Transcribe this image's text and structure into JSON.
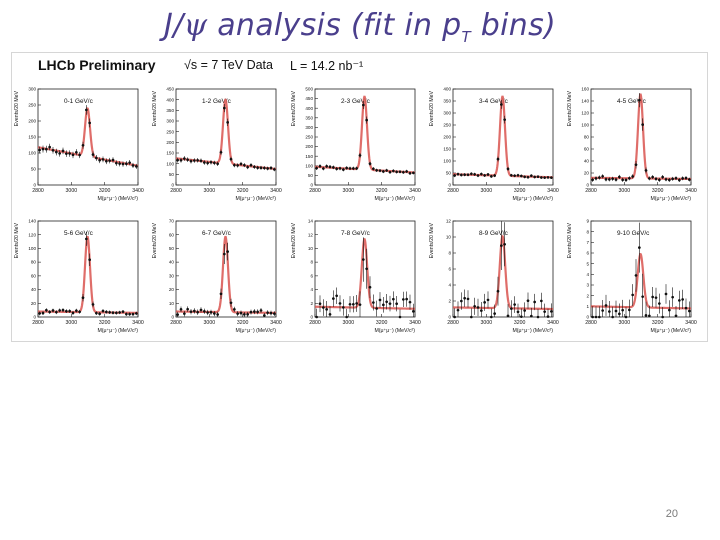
{
  "slide": {
    "title_prefix": "J/",
    "title_psi": "ψ",
    "title_mid": " analysis (fit in p",
    "title_sub": "T",
    "title_suffix": " bins)",
    "page_number": "20"
  },
  "figure_header": {
    "experiment": "LHCb Preliminary",
    "energy": "√s = 7 TeV Data",
    "luminosity": "L = 14.2 nb⁻¹"
  },
  "colors": {
    "fit_line": "#d9534f",
    "data_points": "#111111",
    "frame": "#222222"
  },
  "chart_data": [
    {
      "type": "scatter",
      "bin_label": "0-1 GeV/c",
      "xlabel": "M(μ⁺μ⁻) (MeV/c²)",
      "ylabel": "Events/20 MeV",
      "xlim": [
        2800,
        3400
      ],
      "ylim": [
        0,
        300
      ],
      "xticks": [
        "2800",
        "3000",
        "3200",
        "3400"
      ],
      "yticks": [
        "0",
        "50",
        "100",
        "150",
        "200",
        "250",
        "300"
      ],
      "peak": 3097,
      "sigma": 15,
      "bkg_left": 118,
      "bkg_right": 60,
      "signal": 150,
      "noise": 0.12
    },
    {
      "type": "scatter",
      "bin_label": "1-2 GeV/c",
      "xlabel": "M(μ⁺μ⁻) (MeV/c²)",
      "ylabel": "Events/20 MeV",
      "xlim": [
        2800,
        3400
      ],
      "ylim": [
        0,
        450
      ],
      "xticks": [
        "2800",
        "3000",
        "3200",
        "3400"
      ],
      "yticks": [
        "0",
        "50",
        "100",
        "150",
        "200",
        "250",
        "300",
        "350",
        "400",
        "450"
      ],
      "peak": 3097,
      "sigma": 15,
      "bkg_left": 125,
      "bkg_right": 75,
      "signal": 300,
      "noise": 0.1
    },
    {
      "type": "scatter",
      "bin_label": "2-3 GeV/c",
      "xlabel": "M(μ⁺μ⁻) (MeV/c²)",
      "ylabel": "Events/20 MeV",
      "xlim": [
        2800,
        3400
      ],
      "ylim": [
        0,
        500
      ],
      "xticks": [
        "2800",
        "3000",
        "3200",
        "3400"
      ],
      "yticks": [
        "0",
        "50",
        "100",
        "150",
        "200",
        "250",
        "300",
        "350",
        "400",
        "450",
        "500"
      ],
      "peak": 3097,
      "sigma": 15,
      "bkg_left": 95,
      "bkg_right": 65,
      "signal": 380,
      "noise": 0.12
    },
    {
      "type": "scatter",
      "bin_label": "3-4 GeV/c",
      "xlabel": "M(μ⁺μ⁻) (MeV/c²)",
      "ylabel": "Events/20 MeV",
      "xlim": [
        2800,
        3400
      ],
      "ylim": [
        0,
        400
      ],
      "xticks": [
        "2800",
        "3000",
        "3200",
        "3400"
      ],
      "yticks": [
        "0",
        "50",
        "100",
        "150",
        "200",
        "250",
        "300",
        "350",
        "400"
      ],
      "peak": 3097,
      "sigma": 15,
      "bkg_left": 45,
      "bkg_right": 32,
      "signal": 330,
      "noise": 0.18
    },
    {
      "type": "scatter",
      "bin_label": "4-5 GeV/c",
      "xlabel": "M(μ⁺μ⁻) (MeV/c²)",
      "ylabel": "Events/20 MeV",
      "xlim": [
        2800,
        3400
      ],
      "ylim": [
        0,
        160
      ],
      "xticks": [
        "2800",
        "3000",
        "3200",
        "3400"
      ],
      "yticks": [
        "0",
        "20",
        "40",
        "60",
        "80",
        "100",
        "120",
        "140",
        "160"
      ],
      "peak": 3097,
      "sigma": 15,
      "bkg_left": 12,
      "bkg_right": 10,
      "signal": 140,
      "noise": 0.35
    },
    {
      "type": "scatter",
      "bin_label": "5-6 GeV/c",
      "xlabel": "M(μ⁺μ⁻) (MeV/c²)",
      "ylabel": "Events/20 MeV",
      "xlim": [
        2800,
        3400
      ],
      "ylim": [
        0,
        140
      ],
      "xticks": [
        "2800",
        "3000",
        "3200",
        "3400"
      ],
      "yticks": [
        "0",
        "20",
        "40",
        "60",
        "80",
        "100",
        "120",
        "140"
      ],
      "peak": 3097,
      "sigma": 15,
      "bkg_left": 8,
      "bkg_right": 6,
      "signal": 110,
      "noise": 0.4
    },
    {
      "type": "scatter",
      "bin_label": "6-7 GeV/c",
      "xlabel": "M(μ⁺μ⁻) (MeV/c²)",
      "ylabel": "Events/20 MeV",
      "xlim": [
        2800,
        3400
      ],
      "ylim": [
        0,
        70
      ],
      "xticks": [
        "2800",
        "3000",
        "3200",
        "3400"
      ],
      "yticks": [
        "0",
        "10",
        "20",
        "30",
        "40",
        "50",
        "60",
        "70"
      ],
      "peak": 3097,
      "sigma": 15,
      "bkg_left": 4,
      "bkg_right": 3,
      "signal": 55,
      "noise": 0.55
    },
    {
      "type": "scatter",
      "bin_label": "7-8 GeV/c",
      "xlabel": "M(μ⁺μ⁻) (MeV/c²)",
      "ylabel": "Events/20 MeV",
      "xlim": [
        2800,
        3400
      ],
      "ylim": [
        0,
        14
      ],
      "xticks": [
        "2800",
        "3000",
        "3200",
        "3400"
      ],
      "yticks": [
        "0",
        "2",
        "4",
        "6",
        "8",
        "10",
        "12",
        "14"
      ],
      "peak": 3097,
      "sigma": 16,
      "bkg_left": 1.5,
      "bkg_right": 1.2,
      "signal": 10,
      "noise": 0.8
    },
    {
      "type": "scatter",
      "bin_label": "8-9 GeV/c",
      "xlabel": "M(μ⁺μ⁻) (MeV/c²)",
      "ylabel": "Events/20 MeV",
      "xlim": [
        2800,
        3400
      ],
      "ylim": [
        0,
        12
      ],
      "xticks": [
        "2800",
        "3000",
        "3200",
        "3400"
      ],
      "yticks": [
        "0",
        "2",
        "4",
        "6",
        "8",
        "10",
        "12"
      ],
      "peak": 3097,
      "sigma": 16,
      "bkg_left": 1.2,
      "bkg_right": 1,
      "signal": 9,
      "noise": 0.8
    },
    {
      "type": "scatter",
      "bin_label": "9-10 GeV/c",
      "xlabel": "M(μ⁺μ⁻) (MeV/c²)",
      "ylabel": "Events/20 MeV",
      "xlim": [
        2800,
        3400
      ],
      "ylim": [
        0,
        9
      ],
      "xticks": [
        "2800",
        "3000",
        "3200",
        "3400"
      ],
      "yticks": [
        "0",
        "1",
        "2",
        "3",
        "4",
        "5",
        "6",
        "7",
        "8",
        "9"
      ],
      "peak": 3097,
      "sigma": 17,
      "bkg_left": 1,
      "bkg_right": 0.8,
      "signal": 5,
      "noise": 0.9
    }
  ]
}
